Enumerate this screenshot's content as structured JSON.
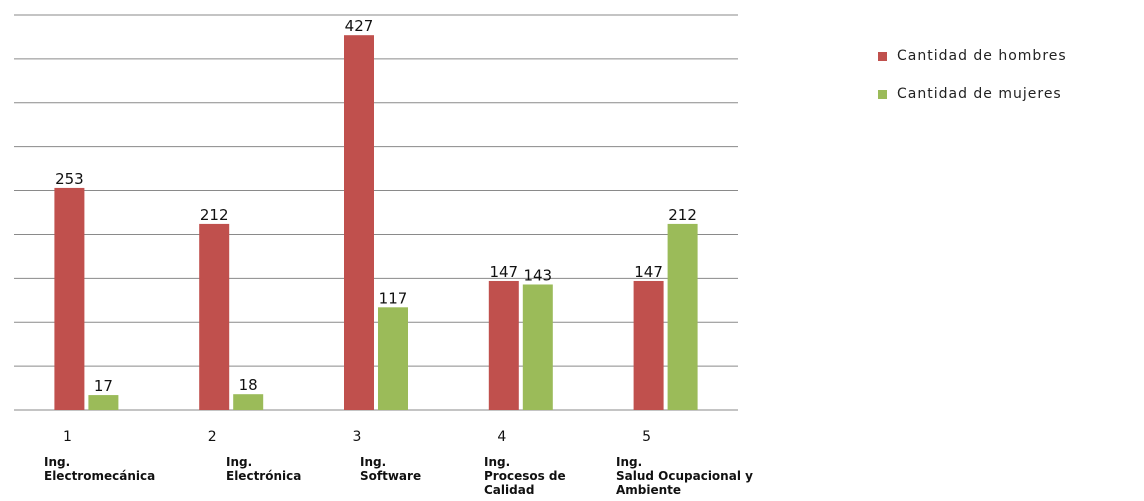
{
  "chart_data": {
    "type": "bar",
    "categories": [
      "1",
      "2",
      "3",
      "4",
      "5"
    ],
    "category_names": [
      [
        "Ing.",
        "Electromecánica"
      ],
      [
        "Ing.",
        "Electrónica"
      ],
      [
        "Ing.",
        "Software"
      ],
      [
        "Ing.",
        "Procesos de",
        "Calidad"
      ],
      [
        "Ing.",
        "Salud Ocupacional y",
        "Ambiente"
      ]
    ],
    "series": [
      {
        "name": "Cantidad de hombres",
        "color": "#c0504d",
        "values": [
          253,
          212,
          427,
          147,
          147
        ]
      },
      {
        "name": "Cantidad de mujeres",
        "color": "#9bbb59",
        "values": [
          17,
          18,
          117,
          143,
          212
        ]
      }
    ],
    "ylim": [
      0,
      450
    ],
    "grid": true,
    "legend_position": "right-top",
    "title": "",
    "xlabel": "",
    "ylabel": ""
  }
}
